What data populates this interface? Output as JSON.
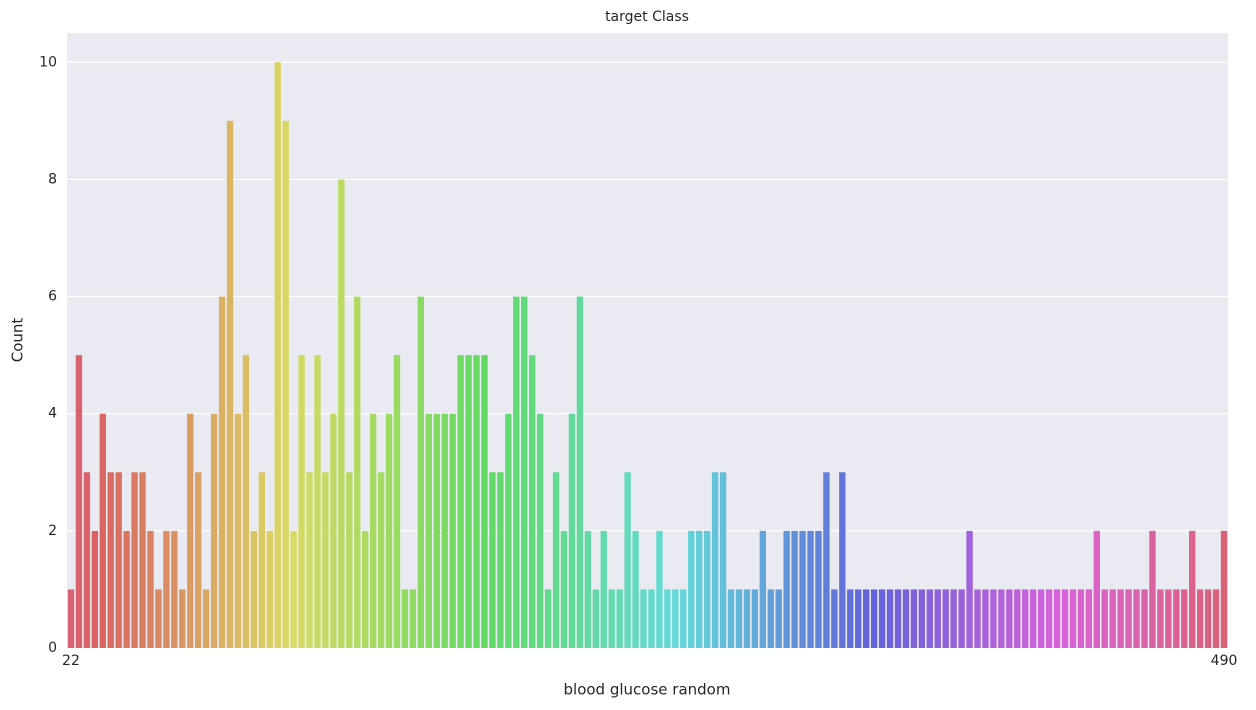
{
  "chart_data": {
    "type": "bar",
    "title": "target Class",
    "x_label": "blood glucose random",
    "y_label": "Count",
    "categories": [
      "22",
      null,
      null,
      null,
      null,
      null,
      null,
      null,
      null,
      null,
      null,
      null,
      null,
      null,
      null,
      null,
      null,
      null,
      null,
      null,
      null,
      null,
      null,
      null,
      null,
      null,
      null,
      null,
      null,
      null,
      null,
      null,
      null,
      null,
      null,
      null,
      null,
      null,
      null,
      null,
      null,
      null,
      null,
      null,
      null,
      null,
      null,
      null,
      null,
      null,
      null,
      null,
      null,
      null,
      null,
      null,
      null,
      null,
      null,
      null,
      null,
      null,
      null,
      null,
      null,
      null,
      null,
      null,
      null,
      null,
      null,
      null,
      null,
      null,
      null,
      null,
      null,
      null,
      null,
      null,
      null,
      null,
      null,
      null,
      null,
      null,
      null,
      null,
      null,
      null,
      null,
      null,
      null,
      null,
      null,
      null,
      null,
      null,
      null,
      null,
      null,
      null,
      null,
      null,
      null,
      null,
      null,
      null,
      null,
      null,
      null,
      null,
      null,
      null,
      null,
      null,
      null,
      null,
      null,
      null,
      null,
      null,
      null,
      null,
      null,
      null,
      null,
      null,
      null,
      null,
      null,
      null,
      null,
      null,
      null,
      null,
      null,
      null,
      null,
      null,
      null,
      null,
      null,
      null,
      null,
      "490"
    ],
    "values": [
      1,
      5,
      3,
      2,
      4,
      3,
      3,
      2,
      3,
      3,
      2,
      1,
      2,
      2,
      1,
      4,
      3,
      1,
      4,
      6,
      9,
      4,
      5,
      2,
      3,
      2,
      10,
      9,
      2,
      5,
      3,
      5,
      3,
      4,
      8,
      3,
      6,
      2,
      4,
      3,
      4,
      5,
      1,
      1,
      6,
      4,
      4,
      4,
      4,
      5,
      5,
      5,
      5,
      3,
      3,
      4,
      6,
      6,
      5,
      4,
      1,
      3,
      2,
      4,
      6,
      2,
      1,
      2,
      1,
      1,
      3,
      2,
      1,
      1,
      2,
      1,
      1,
      1,
      2,
      2,
      2,
      3,
      3,
      1,
      1,
      1,
      1,
      2,
      1,
      1,
      2,
      2,
      2,
      2,
      2,
      3,
      1,
      3,
      1,
      1,
      1,
      1,
      1,
      1,
      1,
      1,
      1,
      1,
      1,
      1,
      1,
      1,
      1,
      2,
      1,
      1,
      1,
      1,
      1,
      1,
      1,
      1,
      1,
      1,
      1,
      1,
      1,
      1,
      1,
      2,
      1,
      1,
      1,
      1,
      1,
      1,
      2,
      1,
      1,
      1,
      1,
      2,
      1,
      1,
      1,
      2
    ],
    "palette": "husl",
    "ylim": [
      0,
      10.5
    ],
    "yticks": [
      0,
      2,
      4,
      6,
      8,
      10
    ],
    "grid": true
  }
}
